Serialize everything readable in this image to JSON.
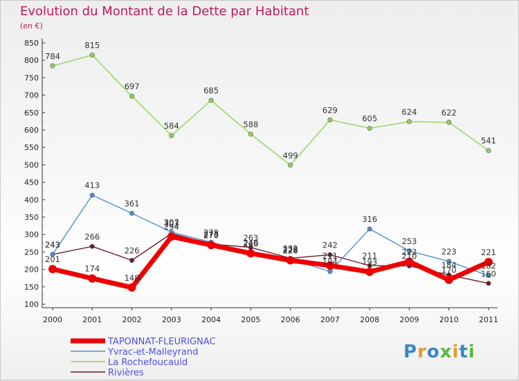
{
  "chart_data": {
    "type": "line",
    "title": "Evolution du Montant de la Dette par Habitant",
    "subtitle": "(en €)",
    "x": [
      "2000",
      "2001",
      "2002",
      "2003",
      "2004",
      "2005",
      "2006",
      "2007",
      "2008",
      "2009",
      "2010",
      "2011"
    ],
    "ylim": [
      100,
      850
    ],
    "yticks": [
      100,
      150,
      200,
      250,
      300,
      350,
      400,
      450,
      500,
      550,
      600,
      650,
      700,
      750,
      800,
      850
    ],
    "grid": false,
    "legend_position": "bottom-left",
    "series": [
      {
        "name": "Rivières",
        "color": "#6b1c24",
        "values": [
          243,
          266,
          226,
          303,
          273,
          263,
          232,
          242,
          211,
          210,
          184,
          160
        ]
      },
      {
        "name": "La Rochefoucauld",
        "color": "#8fd35a",
        "values": [
          784,
          815,
          697,
          584,
          685,
          588,
          499,
          629,
          605,
          624,
          622,
          541
        ]
      },
      {
        "name": "Yvrac-et-Malleyrand",
        "color": "#4f8fd0",
        "values": [
          243,
          413,
          361,
          307,
          278,
          249,
          229,
          194,
          316,
          253,
          223,
          182
        ]
      },
      {
        "name": "TAPONNAT-FLEURIGNAC",
        "color": "#ee0000",
        "values": [
          201,
          174,
          148,
          294,
          270,
          246,
          226,
          211,
          193,
          222,
          170,
          221
        ]
      }
    ],
    "logo_text": "Proxiti"
  }
}
